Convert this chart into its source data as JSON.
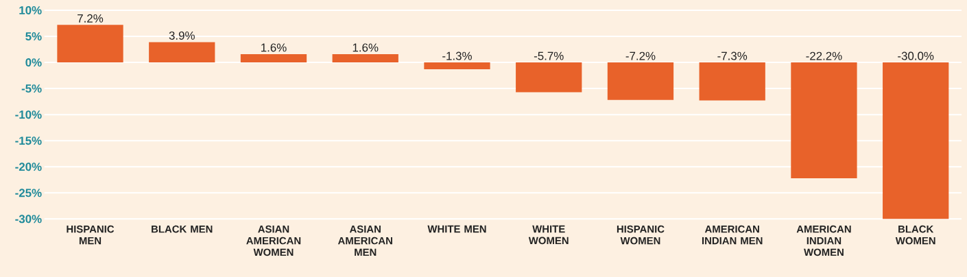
{
  "chart_data": {
    "type": "bar",
    "categories": [
      "HISPANIC MEN",
      "BLACK MEN",
      "ASIAN AMERICAN WOMEN",
      "ASIAN AMERICAN MEN",
      "WHITE MEN",
      "WHITE WOMEN",
      "HISPANIC WOMEN",
      "AMERICAN INDIAN MEN",
      "AMERICAN INDIAN WOMEN",
      "BLACK WOMEN"
    ],
    "values": [
      7.2,
      3.9,
      1.6,
      1.6,
      -1.3,
      -5.7,
      -7.2,
      -7.3,
      -22.2,
      -30.0
    ],
    "value_labels": [
      "7.2%",
      "3.9%",
      "1.6%",
      "1.6%",
      "-1.3%",
      "-5.7%",
      "-7.2%",
      "-7.3%",
      "-22.2%",
      "-30.0%"
    ],
    "color": "#e8622a",
    "ylim": [
      -30,
      10
    ],
    "yticks": [
      {
        "value": -30,
        "label": "-30%"
      },
      {
        "value": -25,
        "label": "-25%"
      },
      {
        "value": -20,
        "label": "-20%"
      },
      {
        "value": -15,
        "label": "-15%"
      },
      {
        "value": -10,
        "label": "-10%"
      },
      {
        "value": -5,
        "label": "-5%"
      },
      {
        "value": 0,
        "label": "0%"
      },
      {
        "value": 5,
        "label": "5%"
      },
      {
        "value": 10,
        "label": "10%"
      }
    ],
    "grid": true
  }
}
